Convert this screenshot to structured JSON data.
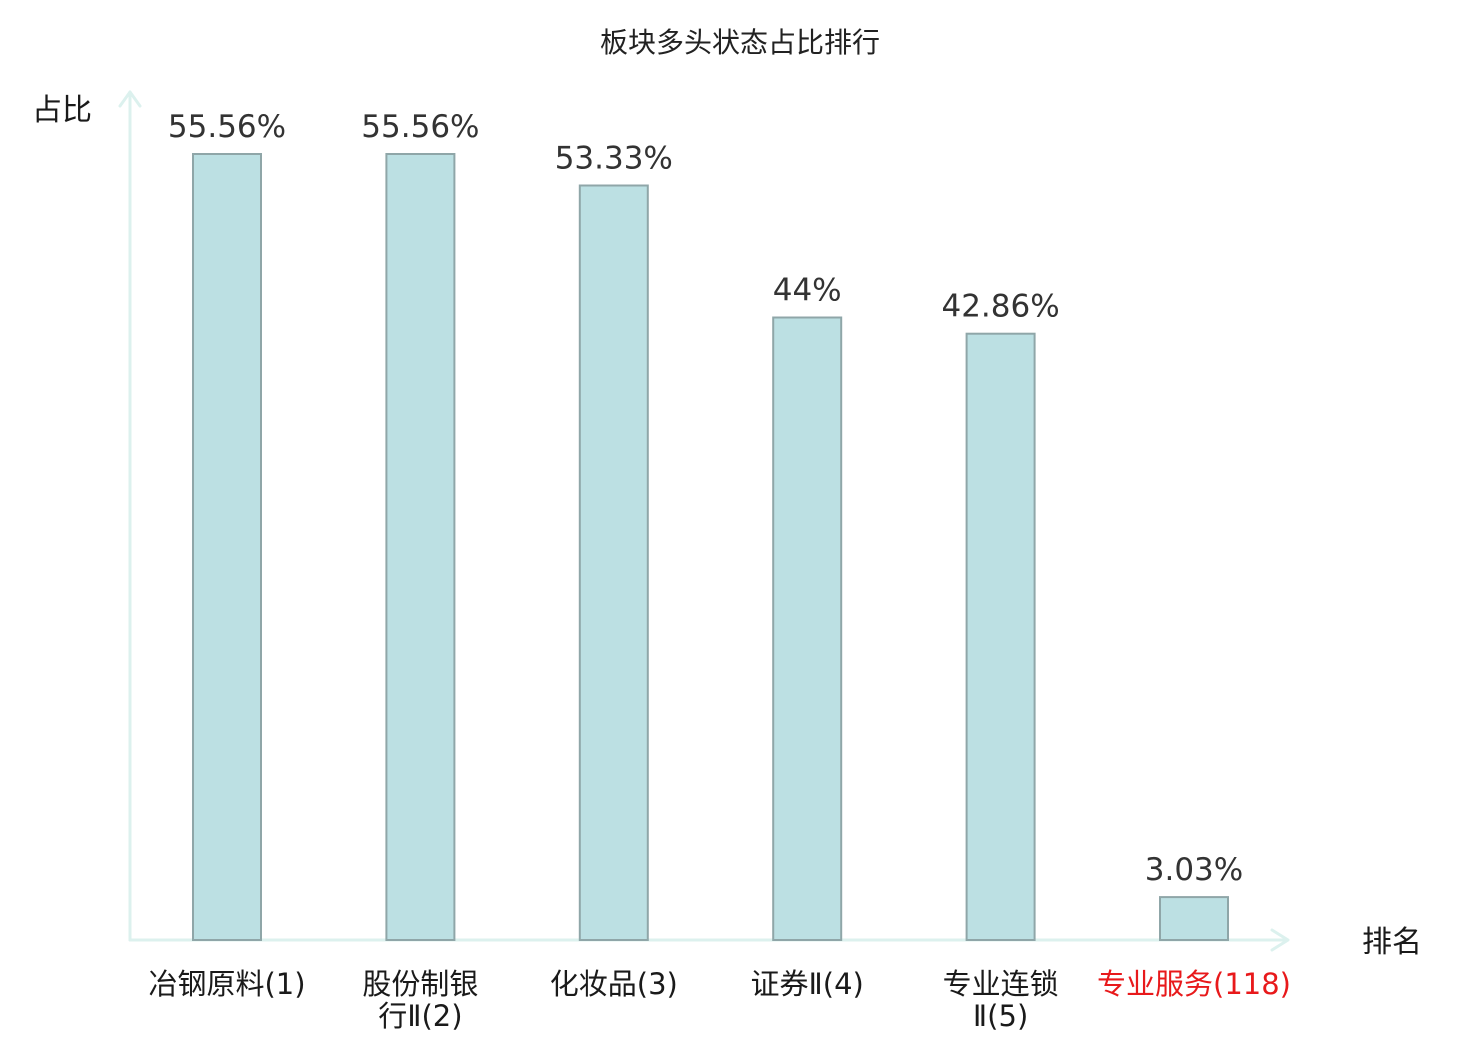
{
  "chart_data": {
    "type": "bar",
    "title": "板块多头状态占比排行",
    "ylabel": "占比",
    "xlabel": "排名",
    "categories": [
      {
        "lines": [
          "冶钢原料(1)"
        ],
        "highlight": false
      },
      {
        "lines": [
          "股份制银",
          "行Ⅱ(2)"
        ],
        "highlight": false
      },
      {
        "lines": [
          "化妆品(3)"
        ],
        "highlight": false
      },
      {
        "lines": [
          "证券Ⅱ(4)"
        ],
        "highlight": false
      },
      {
        "lines": [
          "专业连锁",
          "Ⅱ(5)"
        ],
        "highlight": false
      },
      {
        "lines": [
          "专业服务(118)"
        ],
        "highlight": true
      }
    ],
    "values": [
      55.56,
      55.56,
      53.33,
      44,
      42.86,
      3.03
    ],
    "value_labels": [
      "55.56%",
      "55.56%",
      "53.33%",
      "44%",
      "42.86%",
      "3.03%"
    ],
    "ylim": [
      0,
      55.56
    ],
    "grid": false,
    "legend": "none",
    "colors": {
      "bar_fill": "#bce0e3",
      "bar_stroke": "#8fa6a8",
      "axis": "#dcf1ee",
      "label_normal": "#1a1a1a",
      "label_highlight": "#e8191b"
    }
  }
}
